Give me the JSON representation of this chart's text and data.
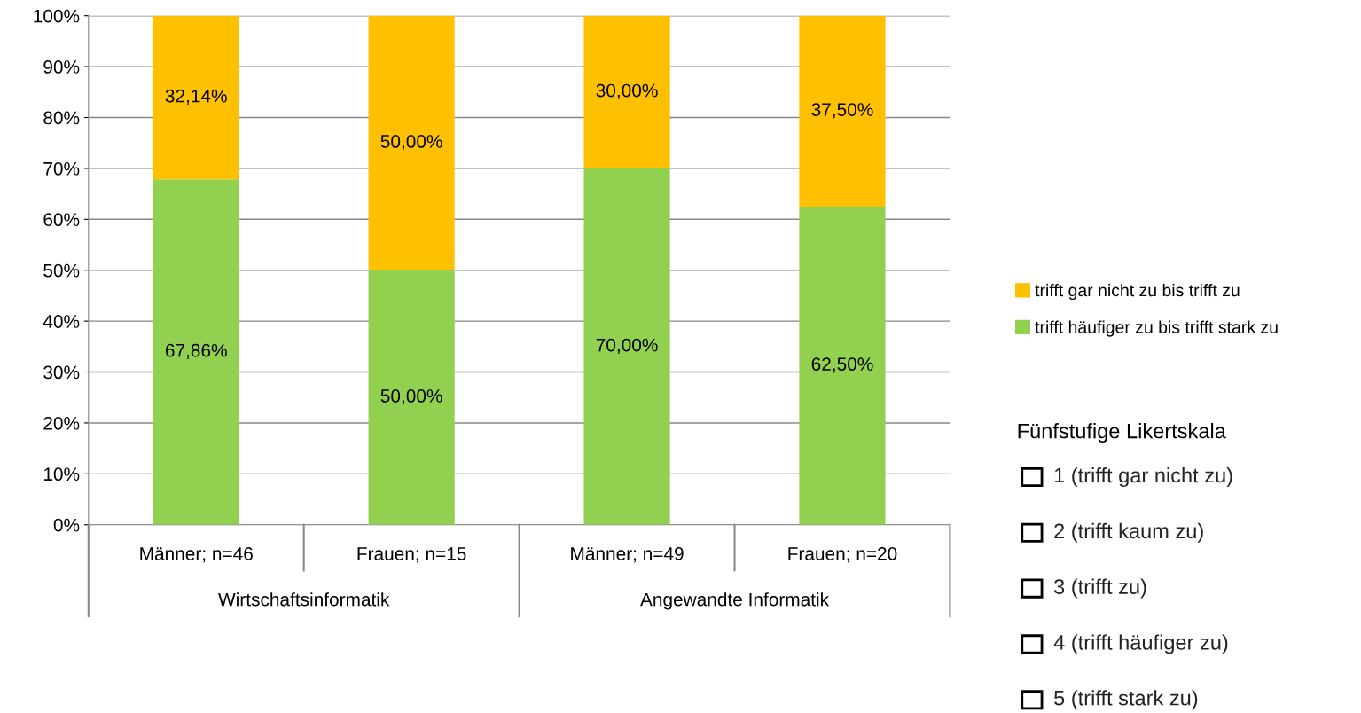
{
  "chart_data": {
    "type": "bar",
    "stacked": true,
    "categories": [
      "Männer; n=46",
      "Frauen; n=15",
      "Männer; n=49",
      "Frauen; n=20"
    ],
    "series": [
      {
        "name": "trifft häufiger zu bis trifft stark zu",
        "color": "#92d050",
        "values": [
          67.86,
          50,
          70,
          62.5
        ],
        "value_labels": [
          "67,86%",
          "50,00%",
          "70,00%",
          "62,50%"
        ]
      },
      {
        "name": "trifft gar nicht zu bis trifft zu",
        "color": "#ffc000",
        "values": [
          32.14,
          50,
          30,
          37.5
        ],
        "value_labels": [
          "32,14%",
          "50,00%",
          "30,00%",
          "37,50%"
        ]
      }
    ],
    "ylim": [
      0,
      100
    ],
    "yticks": [
      {
        "value": 0,
        "label": "0%"
      },
      {
        "value": 10,
        "label": "10%"
      },
      {
        "value": 20,
        "label": "20%"
      },
      {
        "value": 30,
        "label": "30%"
      },
      {
        "value": 40,
        "label": "40%"
      },
      {
        "value": 50,
        "label": "50%"
      },
      {
        "value": 60,
        "label": "60%"
      },
      {
        "value": 70,
        "label": "70%"
      },
      {
        "value": 80,
        "label": "80%"
      },
      {
        "value": 90,
        "label": "90%"
      },
      {
        "value": 100,
        "label": "100%"
      }
    ],
    "grid": "y",
    "legend": "right",
    "annotations": [
      "Wirtschaftsinformatik",
      "Angewandte Informatik",
      "Fünfstufige Likertskala",
      "1 (trifft gar nicht zu)",
      "2 (trifft kaum zu)",
      "3 (trifft zu)",
      "4 (trifft häufiger zu)",
      "5 (trifft stark zu)"
    ]
  }
}
